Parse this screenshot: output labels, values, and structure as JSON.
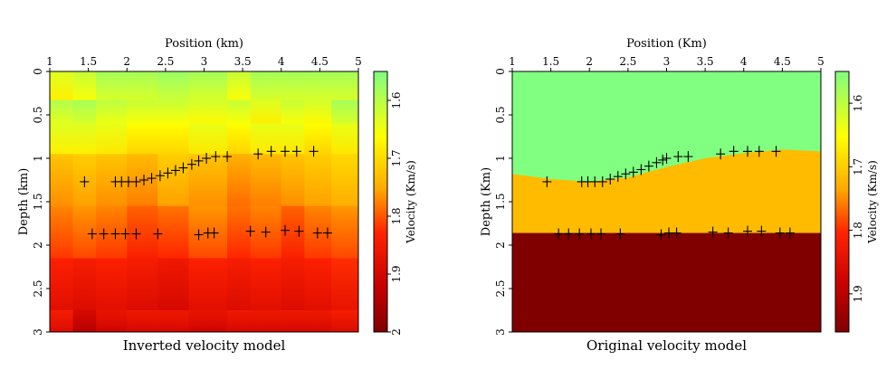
{
  "chart_data": [
    {
      "type": "heatmap",
      "title": "Inverted velocity model",
      "xlabel": "Position (km)",
      "ylabel": "Depth (km)",
      "xlim": [
        1,
        5
      ],
      "ylim": [
        0,
        3
      ],
      "xticks": [
        "1",
        "1.5",
        "2",
        "2.5",
        "3",
        "3.5",
        "4",
        "4.5",
        "5"
      ],
      "yticks": [
        "0",
        "0.5",
        "1",
        "1.5",
        "2",
        "2.5",
        "3"
      ],
      "colorbar": {
        "label": "Velocity (Km/s)",
        "ticks": [
          "1.6",
          "1.7",
          "1.8",
          "1.9",
          "2"
        ],
        "range": [
          1.55,
          2.0
        ]
      },
      "x_edges": [
        1,
        1.3,
        1.6,
        2.0,
        2.4,
        2.8,
        3.3,
        3.6,
        4.0,
        4.3,
        4.65,
        5
      ],
      "y_edges": [
        0,
        0.33,
        0.6,
        0.95,
        1.55,
        2.15,
        2.75,
        3
      ],
      "values": [
        [
          1.66,
          1.64,
          1.61,
          1.61,
          1.6,
          1.61,
          1.64,
          1.61,
          1.61,
          1.61,
          1.61
        ],
        [
          1.62,
          1.61,
          1.63,
          1.64,
          1.64,
          1.65,
          1.64,
          1.66,
          1.64,
          1.65,
          1.61
        ],
        [
          1.66,
          1.66,
          1.67,
          1.69,
          1.69,
          1.67,
          1.69,
          1.67,
          1.67,
          1.69,
          1.67
        ],
        [
          1.75,
          1.74,
          1.75,
          1.76,
          1.74,
          1.75,
          1.77,
          1.76,
          1.75,
          1.74,
          1.73
        ],
        [
          1.8,
          1.79,
          1.8,
          1.82,
          1.81,
          1.79,
          1.81,
          1.8,
          1.82,
          1.8,
          1.79
        ],
        [
          1.86,
          1.87,
          1.86,
          1.87,
          1.88,
          1.86,
          1.87,
          1.86,
          1.87,
          1.86,
          1.85
        ],
        [
          1.87,
          1.92,
          1.89,
          1.88,
          1.88,
          1.89,
          1.88,
          1.88,
          1.88,
          1.88,
          1.87
        ]
      ],
      "markers": [
        [
          1.45,
          1.27
        ],
        [
          1.55,
          1.87
        ],
        [
          1.85,
          1.27
        ],
        [
          1.93,
          1.27
        ],
        [
          2.02,
          1.27
        ],
        [
          2.12,
          1.27
        ],
        [
          2.22,
          1.25
        ],
        [
          2.32,
          1.23
        ],
        [
          2.43,
          1.2
        ],
        [
          2.53,
          1.17
        ],
        [
          2.63,
          1.14
        ],
        [
          2.73,
          1.11
        ],
        [
          2.84,
          1.07
        ],
        [
          2.93,
          1.03
        ],
        [
          3.03,
          1.0
        ],
        [
          3.15,
          0.98
        ],
        [
          3.3,
          0.98
        ],
        [
          3.7,
          0.95
        ],
        [
          3.87,
          0.92
        ],
        [
          4.05,
          0.92
        ],
        [
          4.2,
          0.92
        ],
        [
          4.42,
          0.92
        ],
        [
          1.7,
          1.87
        ],
        [
          1.85,
          1.87
        ],
        [
          1.98,
          1.87
        ],
        [
          2.12,
          1.87
        ],
        [
          2.4,
          1.87
        ],
        [
          2.93,
          1.88
        ],
        [
          3.05,
          1.86
        ],
        [
          3.13,
          1.86
        ],
        [
          3.6,
          1.84
        ],
        [
          3.8,
          1.85
        ],
        [
          4.05,
          1.83
        ],
        [
          4.23,
          1.84
        ],
        [
          4.47,
          1.86
        ],
        [
          4.6,
          1.86
        ]
      ]
    },
    {
      "type": "heatmap",
      "title": "Original velocity model",
      "xlabel": "Position (Km)",
      "ylabel": "Depth (Km)",
      "xlim": [
        1,
        5
      ],
      "ylim": [
        0,
        3
      ],
      "xticks": [
        "1",
        "1.5",
        "2",
        "2.5",
        "3",
        "3.5",
        "4",
        "4.5",
        "5"
      ],
      "yticks": [
        "0",
        "0.5",
        "1",
        "1.5",
        "2",
        "2.5",
        "3"
      ],
      "colorbar": {
        "label": "Velocity (Km/s)",
        "ticks": [
          "1.6",
          "1.7",
          "1.8",
          "1.9"
        ],
        "range": [
          1.55,
          1.96
        ]
      },
      "layers": [
        {
          "velocity": 1.58,
          "color": "#80ff80"
        },
        {
          "velocity": 1.75,
          "color": "#ffbb00"
        },
        {
          "velocity": 1.95,
          "color": "#800000"
        }
      ],
      "interface1": [
        [
          1.0,
          1.18
        ],
        [
          1.5,
          1.24
        ],
        [
          2.0,
          1.27
        ],
        [
          2.5,
          1.22
        ],
        [
          3.0,
          1.1
        ],
        [
          3.5,
          1.0
        ],
        [
          4.0,
          0.94
        ],
        [
          4.5,
          0.9
        ],
        [
          5.0,
          0.92
        ]
      ],
      "interface2_depth": 1.86,
      "markers": [
        [
          1.45,
          1.27
        ],
        [
          1.6,
          1.87
        ],
        [
          1.9,
          1.27
        ],
        [
          1.98,
          1.27
        ],
        [
          2.07,
          1.27
        ],
        [
          2.17,
          1.27
        ],
        [
          2.27,
          1.24
        ],
        [
          2.37,
          1.21
        ],
        [
          2.47,
          1.18
        ],
        [
          2.57,
          1.16
        ],
        [
          2.67,
          1.13
        ],
        [
          2.77,
          1.09
        ],
        [
          2.87,
          1.05
        ],
        [
          2.95,
          1.02
        ],
        [
          3.0,
          1.0
        ],
        [
          3.15,
          0.98
        ],
        [
          3.28,
          0.98
        ],
        [
          3.7,
          0.95
        ],
        [
          3.87,
          0.92
        ],
        [
          4.05,
          0.92
        ],
        [
          4.2,
          0.92
        ],
        [
          4.42,
          0.92
        ],
        [
          1.73,
          1.87
        ],
        [
          1.87,
          1.87
        ],
        [
          2.02,
          1.87
        ],
        [
          2.15,
          1.87
        ],
        [
          2.4,
          1.87
        ],
        [
          2.93,
          1.88
        ],
        [
          3.03,
          1.86
        ],
        [
          3.13,
          1.86
        ],
        [
          3.6,
          1.85
        ],
        [
          3.8,
          1.86
        ],
        [
          4.05,
          1.84
        ],
        [
          4.23,
          1.84
        ],
        [
          4.47,
          1.86
        ],
        [
          4.6,
          1.86
        ]
      ]
    }
  ]
}
